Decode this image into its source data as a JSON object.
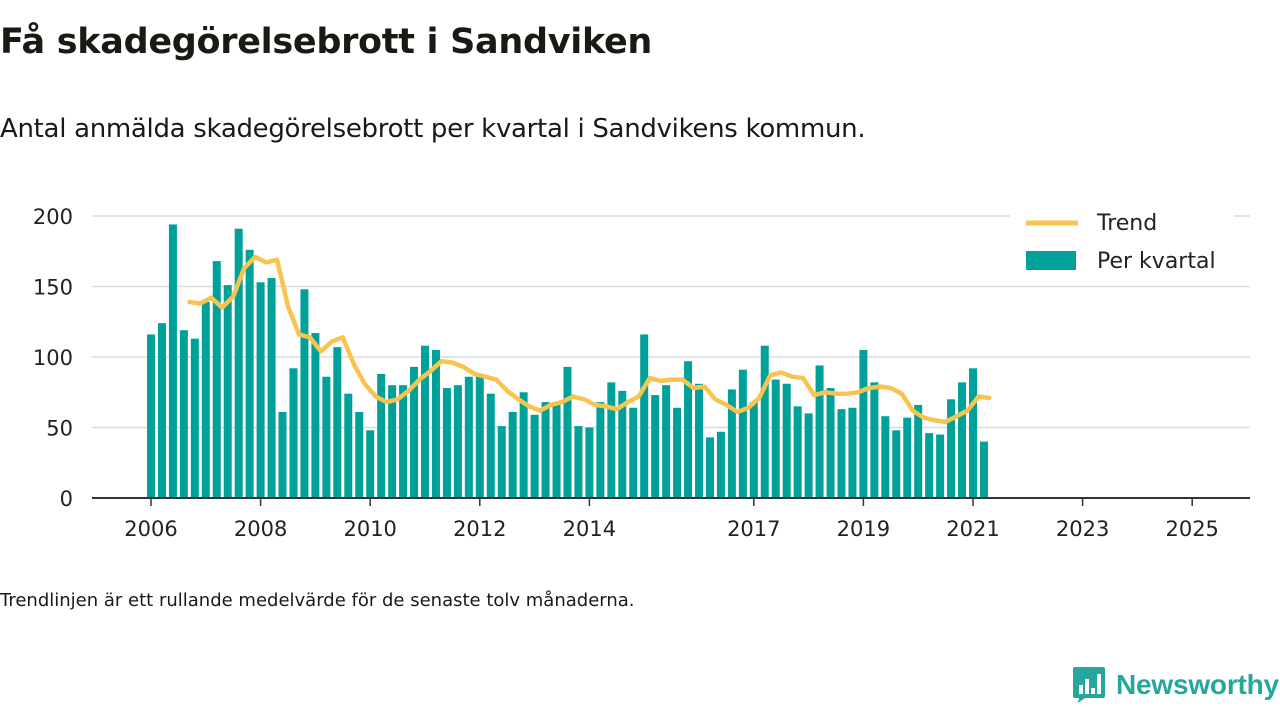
{
  "header": {
    "title": "Få skadegörelsebrott i Sandviken",
    "subtitle": "Antal anmälda skadegörelsebrott per kvartal i Sandvikens kommun."
  },
  "footnote": "Trendlinjen är ett rullande medelvärde för de senaste tolv månaderna.",
  "brand": {
    "name": "Newsworthy",
    "color": "#25a79d"
  },
  "colors": {
    "bars": "#00a19a",
    "trend": "#f8c44f",
    "grid": "#dcdcdc",
    "axis": "#333333"
  },
  "chart_data": {
    "type": "bar",
    "ylim": [
      0,
      200
    ],
    "yticks": [
      "0",
      "50",
      "100",
      "150",
      "200"
    ],
    "xtick_labels": [
      "2006",
      "2008",
      "2010",
      "2012",
      "2014",
      "2017",
      "2019",
      "2021",
      "2023",
      "2025"
    ],
    "xtick_positions": [
      0,
      10,
      20,
      30,
      40,
      55,
      65,
      75,
      85,
      95
    ],
    "legend": {
      "position": "top-right"
    },
    "series": [
      {
        "name": "Per kvartal",
        "type": "bar",
        "values": [
          116,
          124,
          194,
          119,
          113,
          139,
          168,
          151,
          191,
          176,
          153,
          156,
          61,
          92,
          148,
          117,
          86,
          107,
          74,
          61,
          48,
          88,
          80,
          80,
          93,
          108,
          105,
          78,
          80,
          86,
          88,
          74,
          51,
          61,
          75,
          59,
          68,
          68,
          93,
          51,
          50,
          68,
          82,
          76,
          64,
          116,
          73,
          80,
          64,
          97,
          81,
          43,
          47,
          77,
          91,
          68,
          108,
          84,
          81,
          65,
          60,
          94,
          78,
          63,
          64,
          105,
          82,
          58,
          48,
          57,
          66,
          46,
          45,
          70,
          82,
          92,
          40
        ]
      },
      {
        "name": "Trend",
        "type": "line",
        "start_index": 3.5,
        "values": [
          139,
          138,
          142,
          135,
          143,
          163,
          171,
          167,
          169,
          136,
          116,
          114,
          104,
          111,
          114,
          95,
          81,
          72,
          68,
          70,
          76,
          84,
          90,
          97,
          96,
          93,
          88,
          86,
          84,
          76,
          70,
          65,
          62,
          66,
          68,
          72,
          70,
          66,
          65,
          63,
          68,
          72,
          85,
          83,
          84,
          84,
          78,
          79,
          70,
          66,
          61,
          64,
          71,
          87,
          89,
          86,
          85,
          73,
          75,
          74,
          74,
          75,
          78,
          79,
          78,
          74,
          62,
          57,
          55,
          54,
          58,
          62,
          72,
          71
        ]
      }
    ]
  }
}
